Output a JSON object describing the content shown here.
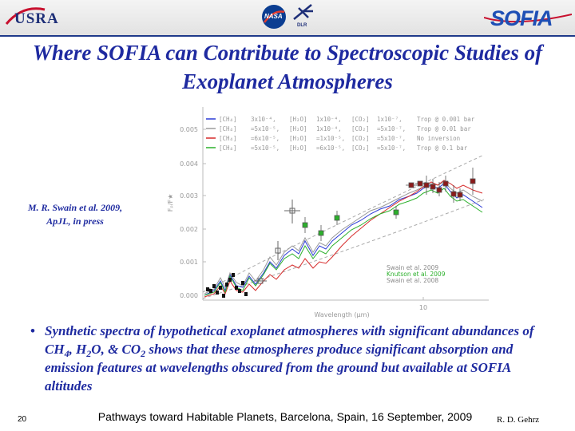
{
  "header": {
    "usra_logo": "USRA",
    "nasa_logo": "NASA",
    "dlr_logo": "DLR",
    "sofia_logo": "SOFIA"
  },
  "title": "Where SOFIA can Contribute  to Spectroscopic Studies of Exoplanet Atmospheres",
  "citation": {
    "line1": "M. R. Swain et al. 2009,",
    "line2": "ApJL, in press"
  },
  "figure": {
    "ylabel": "Fₚ/F★",
    "xlabel": "Wavelength (μm)",
    "y_ticks": [
      "0.005",
      "0.004",
      "0.003",
      "0.002",
      "0.001",
      "0.000"
    ],
    "x_tick": "10",
    "legend_models": [
      {
        "ch4": "[CH₄]",
        "ch4v": "3x10⁻⁴,",
        "h2o": "[H₂O]",
        "h2ov": "1x10⁻⁴,",
        "co2": "[CO₂]",
        "co2v": "1x10⁻⁷,",
        "trop": "Trop @ 0.001 bar",
        "color": "#2b3bd6"
      },
      {
        "ch4": "[CH₄]",
        "ch4v": "=5x10⁻⁵,",
        "h2o": "[H₂O]",
        "h2ov": "1x10⁻⁴,",
        "co2": "[CO₂]",
        "co2v": "=5x10⁻⁷,",
        "trop": "Trop @ 0.01 bar",
        "color": "#9a9a9a"
      },
      {
        "ch4": "[CH₄]",
        "ch4v": "=6x10⁻⁵,",
        "h2o": "[H₂O]",
        "h2ov": "=1x10⁻⁵,",
        "co2": "[CO₂]",
        "co2v": "=5x10⁻⁷,",
        "trop": "No inversion",
        "color": "#d62b2b"
      },
      {
        "ch4": "[CH₄]",
        "ch4v": "=5x10⁻⁵,",
        "h2o": "[H₂O]",
        "h2ov": "=6x10⁻⁵,",
        "co2": "[CO₂]",
        "co2v": "=5x10⁻⁷,",
        "trop": "Trop @ 0.1 bar",
        "color": "#2bb02b"
      }
    ],
    "legend_data": [
      {
        "label": "Swain et al. 2009",
        "color": "#8a8a8a"
      },
      {
        "label": "Knutson et al. 2009",
        "color": "#2bb02b"
      },
      {
        "label": "Swain et al. 2008",
        "color": "#8a8a8a"
      }
    ],
    "colors": {
      "blue": "#2b3bd6",
      "gray": "#9a9a9a",
      "red": "#d62b2b",
      "green": "#2bb02b",
      "data_red": "#8b1a1a",
      "data_black": "#111111"
    }
  },
  "bullet": {
    "text_before": "Synthetic spectra of hypothetical exoplanet atmospheres with significant abundances of  CH",
    "sub1": "4",
    "mid1": ", H",
    "sub2": "2",
    "mid2": "O, & CO",
    "sub3": "2",
    "text_after": " shows that these atmospheres produce significant absorption and emission features at wavelengths obscured from the ground but available at SOFIA altitudes"
  },
  "footer": {
    "page_number": "20",
    "text": "Pathways toward Habitable Planets, Barcelona, Spain, 16 September, 2009",
    "author": "R.  D. Gehrz"
  }
}
